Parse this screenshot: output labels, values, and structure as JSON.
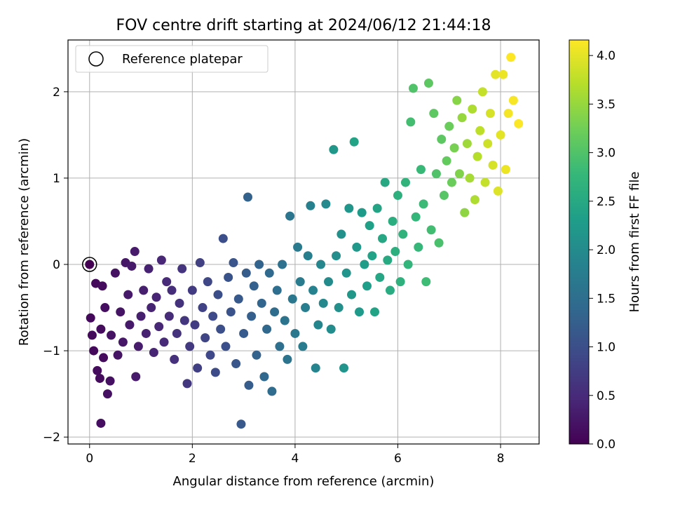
{
  "chart_data": {
    "type": "scatter",
    "title": "FOV centre drift starting at 2024/06/12 21:44:18",
    "xlabel": "Angular distance from reference (arcmin)",
    "ylabel": "Rotation from reference (arcmin)",
    "xlim": [
      -0.42,
      8.75
    ],
    "ylim": [
      -2.08,
      2.6
    ],
    "xticks": [
      "0",
      "2",
      "4",
      "6",
      "8"
    ],
    "yticks": [
      "−2",
      "−1",
      "0",
      "1",
      "2"
    ],
    "grid": true,
    "colorbar": {
      "label": "Hours from first FF file",
      "range": [
        0.0,
        4.16
      ],
      "ticks": [
        "0.0",
        "0.5",
        "1.0",
        "1.5",
        "2.0",
        "2.5",
        "3.0",
        "3.5",
        "4.0"
      ],
      "colormap": "viridis"
    },
    "legend": {
      "position": "top-left",
      "entries": [
        {
          "label": "Reference platepar",
          "marker": "hollow-circle"
        }
      ]
    },
    "reference_point": {
      "x": 0,
      "y": 0
    },
    "points": [
      [
        0.02,
        -0.62,
        0.1
      ],
      [
        0.05,
        -0.82,
        0.1
      ],
      [
        0.08,
        -1.0,
        0.1
      ],
      [
        0.12,
        -0.22,
        0.1
      ],
      [
        0.15,
        -1.23,
        0.12
      ],
      [
        0.2,
        -1.32,
        0.12
      ],
      [
        0.22,
        -0.75,
        0.12
      ],
      [
        0.25,
        -0.25,
        0.12
      ],
      [
        0.27,
        -1.08,
        0.12
      ],
      [
        0.3,
        -0.5,
        0.15
      ],
      [
        0.35,
        -1.5,
        0.18
      ],
      [
        0.4,
        -1.35,
        0.18
      ],
      [
        0.22,
        -1.84,
        0.15
      ],
      [
        0.42,
        -0.82,
        0.2
      ],
      [
        0.5,
        -0.1,
        0.2
      ],
      [
        0.55,
        -1.05,
        0.22
      ],
      [
        0.6,
        -0.55,
        0.22
      ],
      [
        0.65,
        -0.9,
        0.25
      ],
      [
        0.7,
        0.02,
        0.25
      ],
      [
        0.75,
        -0.35,
        0.28
      ],
      [
        0.78,
        -0.7,
        0.28
      ],
      [
        0.82,
        -0.02,
        0.3
      ],
      [
        0.88,
        0.15,
        0.3
      ],
      [
        0.9,
        -1.3,
        0.3
      ],
      [
        0.95,
        -0.95,
        0.32
      ],
      [
        1.0,
        -0.6,
        0.35
      ],
      [
        1.05,
        -0.3,
        0.35
      ],
      [
        1.1,
        -0.8,
        0.38
      ],
      [
        1.15,
        -0.05,
        0.38
      ],
      [
        1.2,
        -0.5,
        0.4
      ],
      [
        1.25,
        -1.02,
        0.42
      ],
      [
        1.3,
        -0.38,
        0.42
      ],
      [
        1.35,
        -0.72,
        0.45
      ],
      [
        1.4,
        0.05,
        0.45
      ],
      [
        1.45,
        -0.9,
        0.5
      ],
      [
        1.5,
        -0.2,
        0.5
      ],
      [
        1.55,
        -0.6,
        0.52
      ],
      [
        1.6,
        -0.3,
        0.55
      ],
      [
        1.65,
        -1.1,
        0.58
      ],
      [
        1.7,
        -0.8,
        0.6
      ],
      [
        1.75,
        -0.45,
        0.6
      ],
      [
        1.8,
        -0.05,
        0.62
      ],
      [
        1.85,
        -0.65,
        0.65
      ],
      [
        1.9,
        -1.38,
        0.68
      ],
      [
        1.95,
        -0.95,
        0.7
      ],
      [
        2.0,
        -0.3,
        0.72
      ],
      [
        2.05,
        -0.7,
        0.75
      ],
      [
        2.1,
        -1.2,
        0.78
      ],
      [
        2.15,
        0.02,
        0.8
      ],
      [
        2.2,
        -0.5,
        0.82
      ],
      [
        2.25,
        -0.85,
        0.85
      ],
      [
        2.3,
        -0.2,
        0.88
      ],
      [
        2.35,
        -1.05,
        0.9
      ],
      [
        2.4,
        -0.6,
        0.92
      ],
      [
        2.45,
        -1.25,
        0.95
      ],
      [
        2.5,
        -0.35,
        0.98
      ],
      [
        2.55,
        -0.75,
        1.0
      ],
      [
        2.6,
        0.3,
        1.0
      ],
      [
        2.65,
        -0.95,
        1.02
      ],
      [
        2.7,
        -0.15,
        1.05
      ],
      [
        2.75,
        -0.55,
        1.08
      ],
      [
        2.8,
        0.02,
        1.1
      ],
      [
        2.85,
        -1.15,
        1.12
      ],
      [
        2.9,
        -0.4,
        1.15
      ],
      [
        2.95,
        -1.85,
        1.15
      ],
      [
        3.0,
        -0.8,
        1.18
      ],
      [
        3.05,
        -0.1,
        1.2
      ],
      [
        3.08,
        0.78,
        1.3
      ],
      [
        3.1,
        -1.4,
        1.22
      ],
      [
        3.15,
        -0.6,
        1.25
      ],
      [
        3.2,
        -0.25,
        1.28
      ],
      [
        3.25,
        -1.05,
        1.3
      ],
      [
        3.3,
        0.0,
        1.32
      ],
      [
        3.35,
        -0.45,
        1.35
      ],
      [
        3.4,
        -1.3,
        1.38
      ],
      [
        3.45,
        -0.75,
        1.4
      ],
      [
        3.5,
        -0.1,
        1.42
      ],
      [
        3.55,
        -1.47,
        1.45
      ],
      [
        3.6,
        -0.55,
        1.48
      ],
      [
        3.65,
        -0.3,
        1.5
      ],
      [
        3.7,
        -0.95,
        1.52
      ],
      [
        3.75,
        0.0,
        1.55
      ],
      [
        3.8,
        -0.65,
        1.58
      ],
      [
        3.85,
        -1.1,
        1.6
      ],
      [
        3.9,
        0.56,
        1.62
      ],
      [
        3.95,
        -0.4,
        1.65
      ],
      [
        4.0,
        -0.8,
        1.68
      ],
      [
        4.05,
        0.2,
        1.7
      ],
      [
        4.1,
        -0.2,
        1.72
      ],
      [
        4.15,
        -0.95,
        1.75
      ],
      [
        4.2,
        -0.5,
        1.78
      ],
      [
        4.25,
        0.1,
        1.8
      ],
      [
        4.3,
        0.68,
        1.82
      ],
      [
        4.35,
        -0.3,
        1.85
      ],
      [
        4.4,
        -1.2,
        1.88
      ],
      [
        4.45,
        -0.7,
        1.9
      ],
      [
        4.5,
        0.0,
        1.92
      ],
      [
        4.55,
        -0.45,
        1.95
      ],
      [
        4.6,
        0.7,
        1.98
      ],
      [
        4.65,
        -0.2,
        2.0
      ],
      [
        4.7,
        -0.75,
        2.02
      ],
      [
        4.75,
        1.33,
        2.2
      ],
      [
        4.8,
        0.1,
        2.05
      ],
      [
        4.85,
        -0.5,
        2.08
      ],
      [
        4.9,
        0.35,
        2.1
      ],
      [
        4.95,
        -1.2,
        2.15
      ],
      [
        5.0,
        -0.1,
        2.15
      ],
      [
        5.05,
        0.65,
        2.18
      ],
      [
        5.1,
        -0.35,
        2.2
      ],
      [
        5.15,
        1.42,
        2.4
      ],
      [
        5.2,
        0.2,
        2.22
      ],
      [
        5.25,
        -0.55,
        2.25
      ],
      [
        5.3,
        0.6,
        2.28
      ],
      [
        5.35,
        0.0,
        2.3
      ],
      [
        5.4,
        -0.25,
        2.32
      ],
      [
        5.45,
        0.45,
        2.35
      ],
      [
        5.5,
        0.1,
        2.38
      ],
      [
        5.55,
        -0.55,
        2.4
      ],
      [
        5.6,
        0.65,
        2.42
      ],
      [
        5.65,
        -0.15,
        2.45
      ],
      [
        5.7,
        0.3,
        2.48
      ],
      [
        5.75,
        0.95,
        2.5
      ],
      [
        5.8,
        0.05,
        2.52
      ],
      [
        5.85,
        -0.3,
        2.55
      ],
      [
        5.9,
        0.5,
        2.58
      ],
      [
        5.95,
        0.15,
        2.6
      ],
      [
        6.0,
        0.8,
        2.62
      ],
      [
        6.05,
        -0.2,
        2.65
      ],
      [
        6.1,
        0.35,
        2.68
      ],
      [
        6.15,
        0.95,
        2.7
      ],
      [
        6.2,
        0.0,
        2.72
      ],
      [
        6.25,
        1.65,
        2.9
      ],
      [
        6.3,
        2.04,
        3.0
      ],
      [
        6.35,
        0.55,
        2.75
      ],
      [
        6.4,
        0.2,
        2.78
      ],
      [
        6.45,
        1.1,
        2.8
      ],
      [
        6.5,
        0.7,
        2.82
      ],
      [
        6.55,
        -0.2,
        2.85
      ],
      [
        6.6,
        2.1,
        3.1
      ],
      [
        6.65,
        0.4,
        2.88
      ],
      [
        6.7,
        1.75,
        3.1
      ],
      [
        6.75,
        1.05,
        3.0
      ],
      [
        6.8,
        0.25,
        2.95
      ],
      [
        6.85,
        1.45,
        3.1
      ],
      [
        6.9,
        0.8,
        3.05
      ],
      [
        6.95,
        1.2,
        3.15
      ],
      [
        7.0,
        1.6,
        3.2
      ],
      [
        7.05,
        0.95,
        3.2
      ],
      [
        7.1,
        1.35,
        3.3
      ],
      [
        7.15,
        1.9,
        3.4
      ],
      [
        7.2,
        1.05,
        3.35
      ],
      [
        7.25,
        1.7,
        3.5
      ],
      [
        7.3,
        0.6,
        3.45
      ],
      [
        7.35,
        1.4,
        3.55
      ],
      [
        7.4,
        1.0,
        3.6
      ],
      [
        7.45,
        1.8,
        3.65
      ],
      [
        7.5,
        0.75,
        3.65
      ],
      [
        7.55,
        1.25,
        3.7
      ],
      [
        7.6,
        1.55,
        3.75
      ],
      [
        7.65,
        2.0,
        3.8
      ],
      [
        7.7,
        0.95,
        3.8
      ],
      [
        7.75,
        1.4,
        3.85
      ],
      [
        7.8,
        1.75,
        3.9
      ],
      [
        7.85,
        1.15,
        3.9
      ],
      [
        7.9,
        2.2,
        4.0
      ],
      [
        7.95,
        0.85,
        3.95
      ],
      [
        8.0,
        1.5,
        4.0
      ],
      [
        8.05,
        2.2,
        4.05
      ],
      [
        8.1,
        1.1,
        4.05
      ],
      [
        8.15,
        1.75,
        4.1
      ],
      [
        8.2,
        2.4,
        4.16
      ],
      [
        8.25,
        1.9,
        4.12
      ],
      [
        8.35,
        1.63,
        4.15
      ]
    ]
  }
}
